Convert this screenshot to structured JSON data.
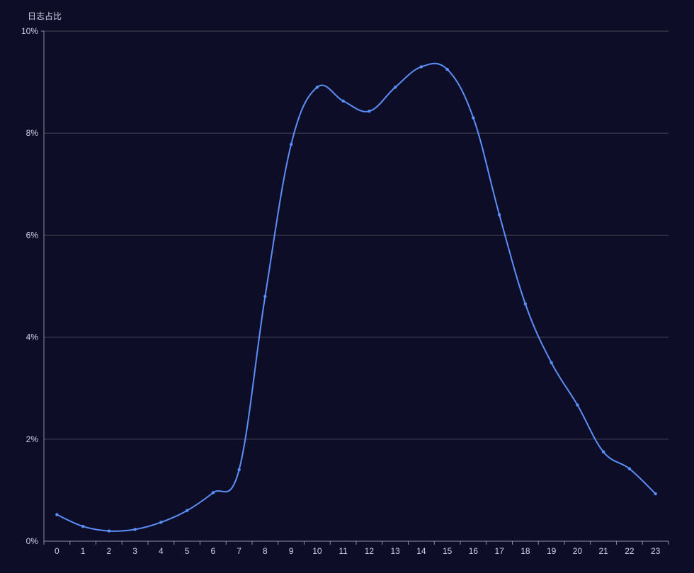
{
  "chart_data": {
    "type": "line",
    "title": "",
    "xlabel": "",
    "ylabel": "日志占比",
    "categories": [
      "0",
      "1",
      "2",
      "3",
      "4",
      "5",
      "6",
      "7",
      "8",
      "9",
      "10",
      "11",
      "12",
      "13",
      "14",
      "15",
      "16",
      "17",
      "18",
      "19",
      "20",
      "21",
      "22",
      "23"
    ],
    "series": [
      {
        "values": [
          0.52,
          0.29,
          0.2,
          0.23,
          0.37,
          0.6,
          0.95,
          1.4,
          4.8,
          7.78,
          8.9,
          8.63,
          8.43,
          8.9,
          9.3,
          9.25,
          8.3,
          6.4,
          4.65,
          3.5,
          2.67,
          1.75,
          1.42,
          0.93
        ]
      }
    ],
    "yticks": [
      "0%",
      "2%",
      "4%",
      "6%",
      "8%",
      "10%"
    ],
    "ylim": [
      0,
      10
    ],
    "y_unit": "%",
    "grid": true,
    "legend": "none",
    "colors": {
      "background": "#0e0d27",
      "line": "#5b8ff9",
      "grid": "#4a4a5a",
      "axis": "#8a8fa8",
      "text": "#cfd3e6"
    }
  }
}
